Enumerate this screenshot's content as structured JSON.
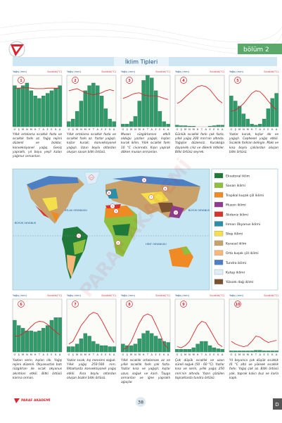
{
  "header": {
    "section": "bölüm 2",
    "title": "İklim Tipleri"
  },
  "chart_labels": {
    "precipitation": "Yağış (mm)",
    "temperature": "Sıcaklık(°C)",
    "months": [
      "O",
      "Ş",
      "M",
      "N",
      "M",
      "H",
      "T",
      "A",
      "E",
      "E",
      "K",
      "A"
    ]
  },
  "climographs": [
    {
      "number": "1",
      "precipitation": [
        80,
        75,
        80,
        85,
        70,
        60,
        55,
        60,
        65,
        70,
        75,
        80
      ],
      "temperature": [
        75,
        75,
        76,
        76,
        75,
        74,
        74,
        74,
        75,
        75,
        75,
        75
      ],
      "description": "Yıllık ortalama sıcaklık fazla ve sıcaklık farkı az. Yağış rejimi düzenli ve boldur, konveksiyonel yağış. Geniş yapraklı, yıl boyu yeşil kalan yağmur ormanları."
    },
    {
      "number": "2",
      "precipitation": [
        10,
        15,
        30,
        50,
        70,
        80,
        85,
        80,
        60,
        35,
        15,
        10
      ],
      "temperature": [
        70,
        72,
        74,
        70,
        66,
        64,
        62,
        64,
        66,
        70,
        72,
        70
      ],
      "description": "Yıllık ortalama sıcaklık fazla ve sıcaklık farkı az. Yazlar yağışlı, kışlar kurak; konveksiyonel yağışlı. Uzun boylu otlardan oluşan savan bitki örtüsü."
    },
    {
      "number": "3",
      "precipitation": [
        5,
        5,
        10,
        20,
        50,
        90,
        100,
        95,
        70,
        30,
        10,
        5
      ],
      "temperature": [
        55,
        58,
        62,
        65,
        66,
        62,
        60,
        60,
        60,
        58,
        55,
        53
      ],
      "description": "Muson rüzgârlarının etkili olduğu yazları yağışlı, kışları kurak iklim. Yıllık sıcaklık farkı 10 °C civarında. Kışın yaprak döken muson ormanları."
    },
    {
      "number": "4",
      "precipitation": [
        3,
        2,
        2,
        1,
        1,
        0,
        0,
        0,
        1,
        2,
        3,
        3
      ],
      "temperature": [
        45,
        50,
        58,
        65,
        72,
        78,
        80,
        78,
        72,
        62,
        52,
        46
      ],
      "description": "Günlük sıcaklık farkı çok fazla, yıllık yağış 200 mm'nin altında. Yağışlar düzensiz. Kuraklığa dayanıklı cılız ve dikenli bitkiler. Bitki örtüsü seyrek."
    },
    {
      "number": "5",
      "precipitation": [
        60,
        50,
        40,
        25,
        15,
        5,
        3,
        5,
        15,
        35,
        55,
        65
      ],
      "temperature": [
        30,
        32,
        38,
        45,
        55,
        65,
        70,
        68,
        60,
        50,
        40,
        33
      ],
      "description": "Yazlar kurak, kışlar ılık ve yağışlı. Cephesel yağış etkili. Sıcaklık farkları belirgin. Maki ve kısa boylu çalılardan oluşan bitki örtüsü."
    },
    {
      "number": "6",
      "precipitation": [
        60,
        50,
        45,
        40,
        40,
        38,
        40,
        45,
        50,
        60,
        65,
        65
      ],
      "temperature": [
        30,
        30,
        35,
        40,
        48,
        55,
        58,
        57,
        52,
        45,
        38,
        32
      ],
      "description": "Yazları serin, kışları ılık. Yağış rejimi düzenli. Okyanustan batı rüzgârları ile sıcak okyanus akıntıları etkili. Bitki örtüsü karma orman."
    },
    {
      "number": "7",
      "precipitation": [
        10,
        10,
        15,
        25,
        35,
        30,
        20,
        15,
        12,
        12,
        10,
        10
      ],
      "temperature": [
        15,
        20,
        35,
        50,
        60,
        70,
        75,
        72,
        60,
        45,
        30,
        18
      ],
      "description": "Yazlar sıcak, kış mevsimi soğuk. Yıllık yağış 250-500 mm. İlkbaharda konveksiyonel yağış etkili. Kısa boylu otlardan oluşan bozkır bitki örtüsü."
    },
    {
      "number": "8",
      "precipitation": [
        15,
        12,
        12,
        15,
        25,
        35,
        40,
        35,
        30,
        25,
        20,
        18
      ],
      "temperature": [
        5,
        8,
        20,
        38,
        55,
        68,
        72,
        68,
        52,
        35,
        15,
        6
      ],
      "description": "Yıllık sıcaklık ortalaması az ve yıllık sıcaklık farkı çok fazla. Yazlar kısa ve yağışlı; kışlar uzun, soğuk ve karlı. Tayga ormanları ve iğne yapraklı ağaçlar."
    },
    {
      "number": "9",
      "precipitation": [
        5,
        5,
        5,
        5,
        8,
        15,
        20,
        20,
        12,
        8,
        6,
        5
      ],
      "temperature": [
        10,
        8,
        12,
        20,
        35,
        50,
        58,
        55,
        42,
        28,
        15,
        10
      ],
      "description": "Çok düşük sıcaklık ve uzun süreli soğuk (50 - 60 °C). Yazlar kısa ve serin, yıllık yağış 250 mm'nin altında. Yazın çözülen topraklarda tundra örtüsü."
    },
    {
      "number": "10",
      "precipitation": [
        2,
        2,
        2,
        2,
        2,
        2,
        3,
        3,
        2,
        2,
        2,
        2
      ],
      "temperature": [
        20,
        15,
        12,
        10,
        12,
        20,
        30,
        28,
        22,
        18,
        20,
        22
      ],
      "description": "Yıl boyunca çok düşük sıcaklık (0 °C altı) ve yüksek sıcaklık farkı. Yağış çok az. Bitki örtüsü yok, toprak kalıcı buz ve karla kaplı."
    }
  ],
  "map": {
    "oceans": [
      "ATLAS OKYANUSU",
      "BÜYÜK OKYANUS",
      "BÜYÜK OKYANUS",
      "HİNT OKYANUSU"
    ],
    "markers": [
      "1",
      "2",
      "3",
      "4",
      "5",
      "6",
      "7",
      "8",
      "9",
      "10"
    ]
  },
  "legend": [
    {
      "label": "Ekvatoral iklim",
      "color": "#1f7a3a"
    },
    {
      "label": "Savan iklimi",
      "color": "#8fbf3f"
    },
    {
      "label": "Tropikal kuşak çöl iklimi",
      "color": "#f08a24"
    },
    {
      "label": "Muson iklimi",
      "color": "#8e3b8e"
    },
    {
      "label": "Akdeniz iklimi",
      "color": "#d9342b"
    },
    {
      "label": "Ilıman Okyanus iklimi",
      "color": "#2a8fa8"
    },
    {
      "label": "Step iklimi",
      "color": "#f3e04a"
    },
    {
      "label": "Karasal iklim",
      "color": "#c9a26b"
    },
    {
      "label": "Orta kuşak çöl iklimi",
      "color": "#f6b87a"
    },
    {
      "label": "Tundra iklimi",
      "color": "#4c7fc4"
    },
    {
      "label": "Kutup iklimi",
      "color": "#dfeef7"
    },
    {
      "label": "Yüksek dağ iklimi",
      "color": "#7a5230"
    }
  ],
  "footer": {
    "publisher": "PARAF AKADEMİ",
    "page": "38",
    "tab": "D"
  },
  "watermark": "PARAF AKADEMİ"
}
